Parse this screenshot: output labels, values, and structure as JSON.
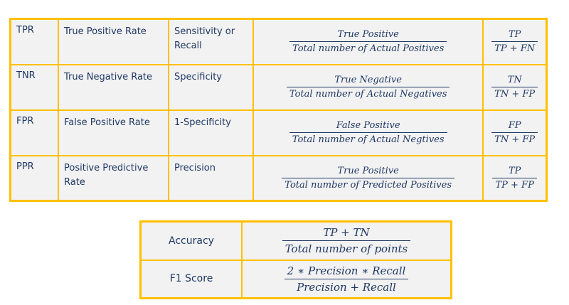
{
  "metrics": [
    {
      "abbr": "TPR",
      "name": "True Positive Rate",
      "alias": "Sensitivity or Recall",
      "formula_num": "True Positive",
      "formula_den": "Total number of Actual Positives",
      "short_num": "TP",
      "short_den": "TP + FN"
    },
    {
      "abbr": "TNR",
      "name": "True Negative Rate",
      "alias": "Specificity",
      "formula_num": "True Negative",
      "formula_den": "Total number of Actual Negatives",
      "short_num": "TN",
      "short_den": "TN + FP"
    },
    {
      "abbr": "FPR",
      "name": "False Positive Rate",
      "alias": "1-Specificity",
      "formula_num": "False Positive",
      "formula_den": "Total number of Actual Negtives",
      "short_num": "FP",
      "short_den": "TN + FP"
    },
    {
      "abbr": "PPR",
      "name": "Positive Predictive Rate",
      "alias": "Precision",
      "formula_num": "True Positive",
      "formula_den": "Total number of Predicted  Positives",
      "short_num": "TP",
      "short_den": "TP + FP"
    }
  ],
  "summary": [
    {
      "label": "Accuracy",
      "num": "TP + TN",
      "den": "Total number of points"
    },
    {
      "label": "F1 Score",
      "num": "2 ∗ Precision  ∗ Recall",
      "den": "Precision + Recall"
    }
  ],
  "colors": {
    "border": "#ffc000",
    "cell_bg": "#f2f2f2",
    "text": "#1f3864"
  }
}
